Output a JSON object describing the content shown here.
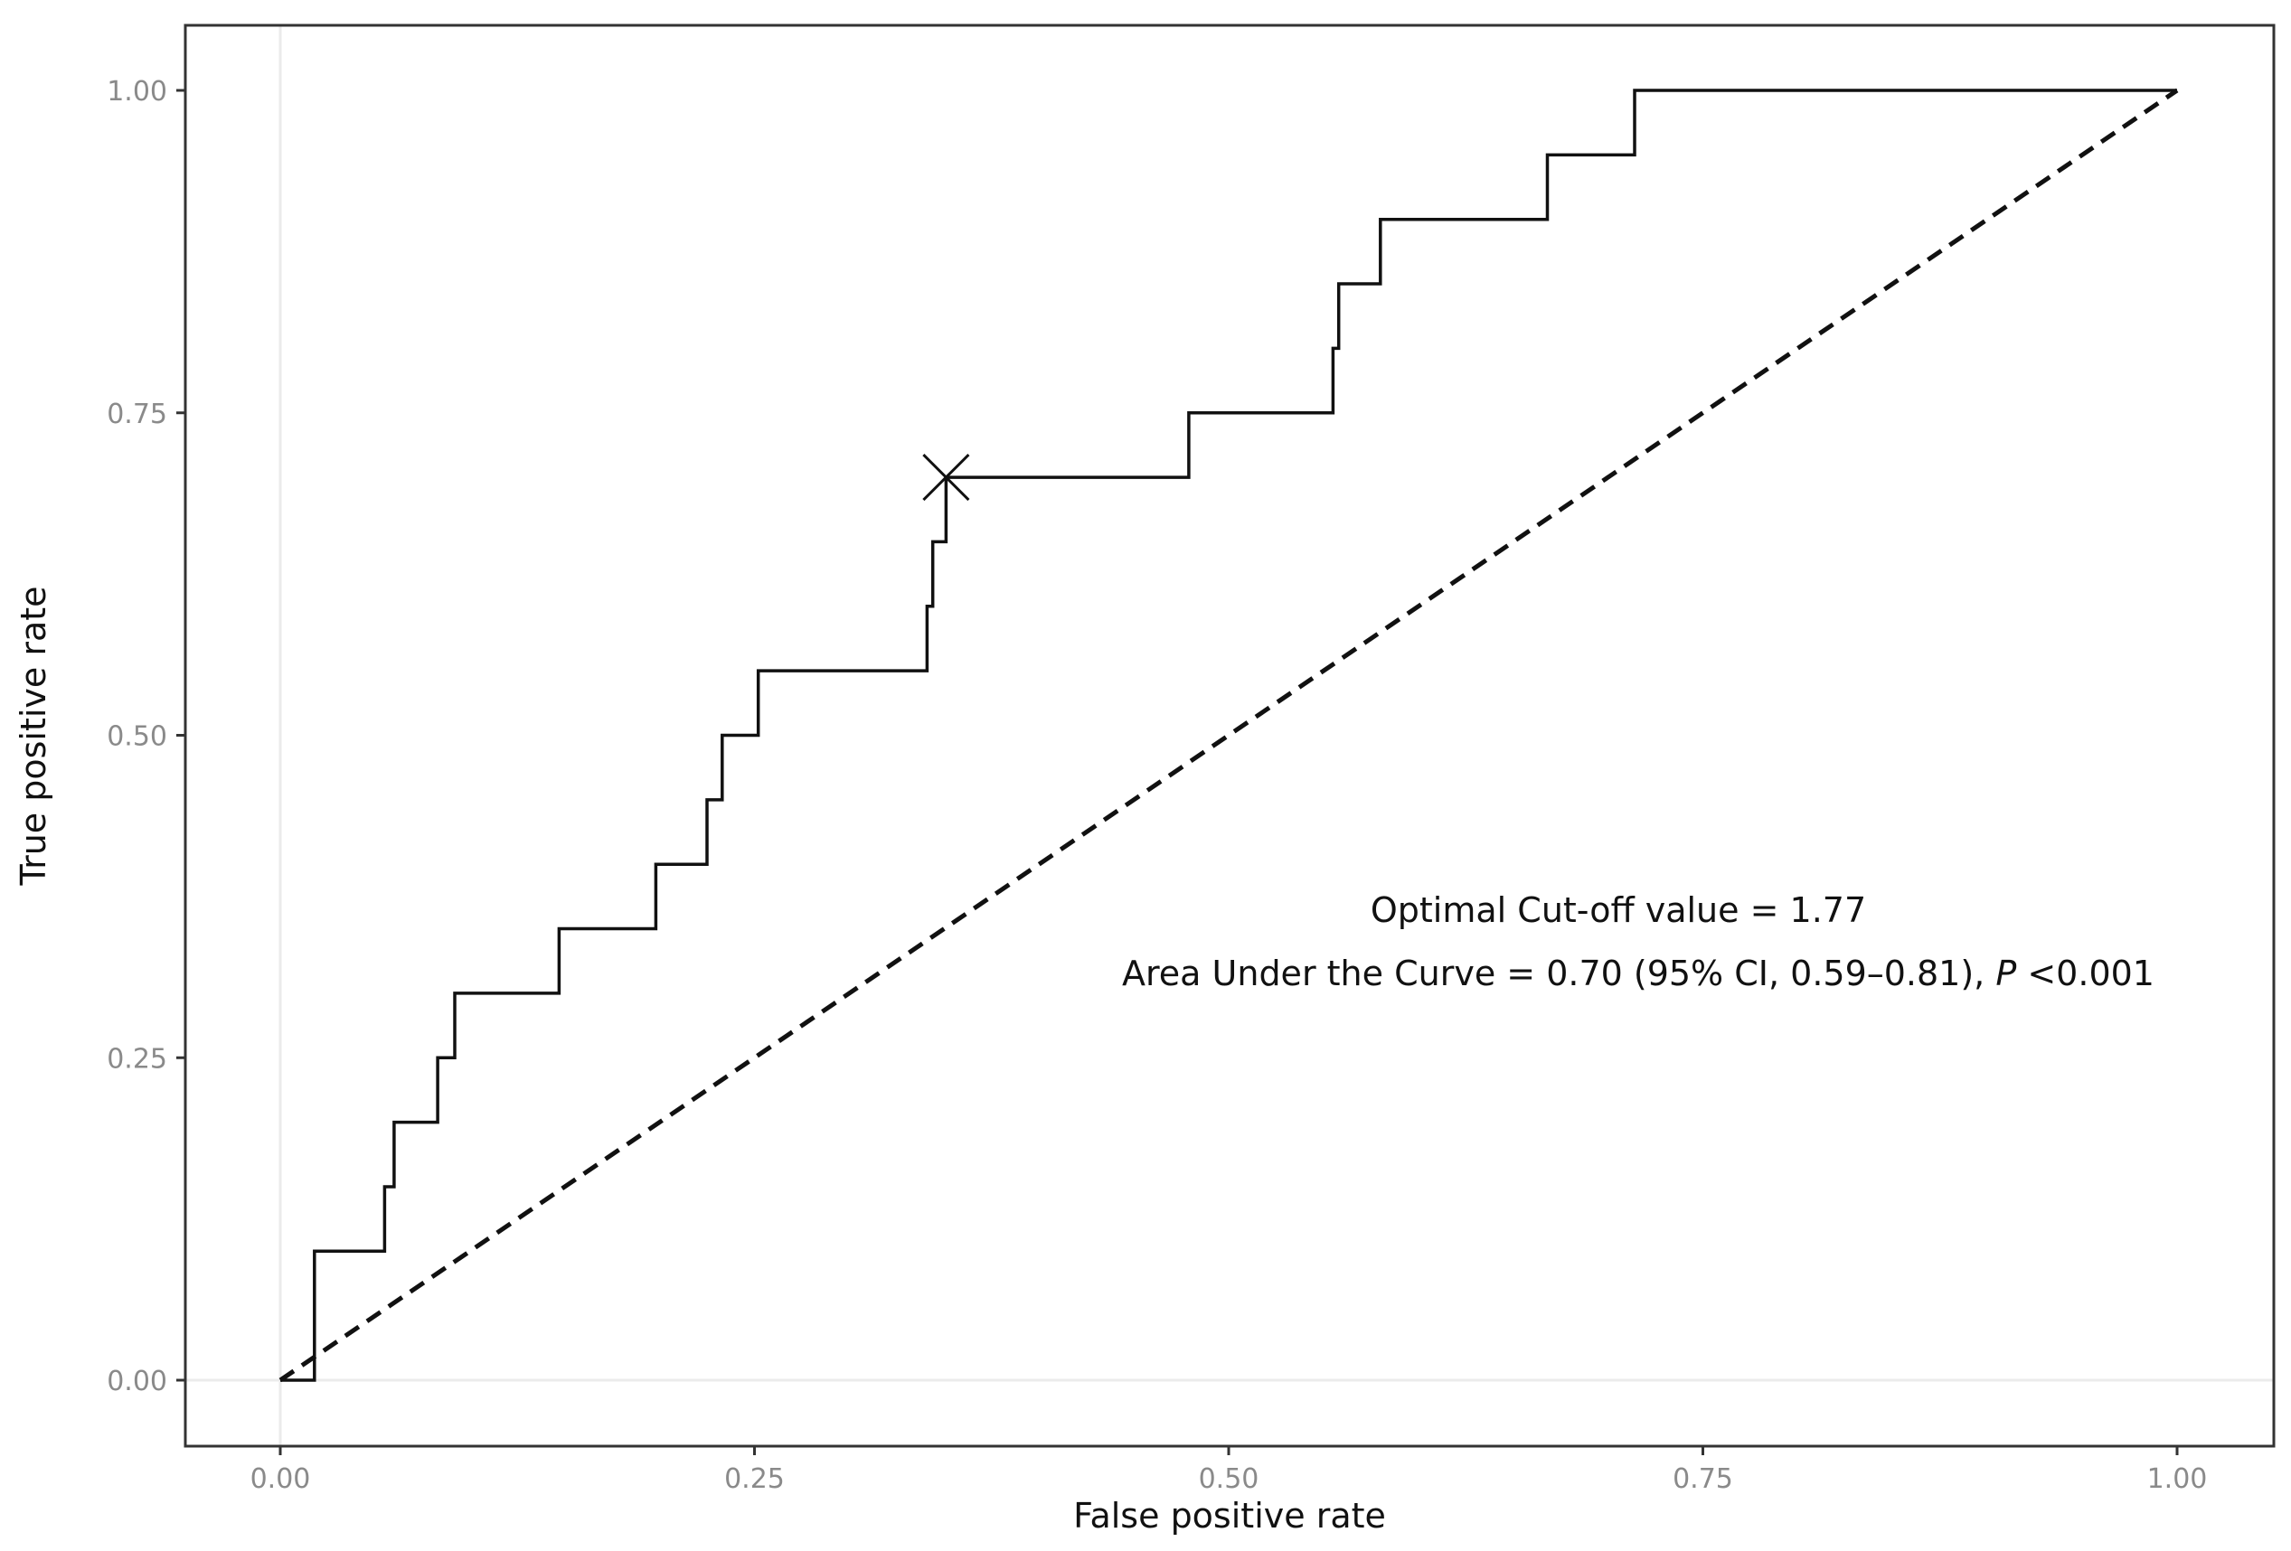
{
  "chart_data": {
    "type": "line",
    "title": "",
    "xlabel": "False positive rate",
    "ylabel": "True positive rate",
    "xlim": [
      0,
      1
    ],
    "ylim": [
      0,
      1
    ],
    "x_ticks": [
      "0.00",
      "0.25",
      "0.50",
      "0.75",
      "1.00"
    ],
    "y_ticks": [
      "0.00",
      "0.25",
      "0.50",
      "0.75",
      "1.00"
    ],
    "grid": "zero lines only",
    "legend": "none",
    "series": [
      {
        "style": "solid step",
        "color": "#111111",
        "points": [
          [
            0.0,
            0.0
          ],
          [
            0.018,
            0.0
          ],
          [
            0.018,
            0.1
          ],
          [
            0.055,
            0.1
          ],
          [
            0.055,
            0.15
          ],
          [
            0.06,
            0.15
          ],
          [
            0.06,
            0.2
          ],
          [
            0.083,
            0.2
          ],
          [
            0.083,
            0.25
          ],
          [
            0.092,
            0.25
          ],
          [
            0.092,
            0.3
          ],
          [
            0.147,
            0.3
          ],
          [
            0.147,
            0.35
          ],
          [
            0.198,
            0.35
          ],
          [
            0.198,
            0.4
          ],
          [
            0.225,
            0.4
          ],
          [
            0.225,
            0.45
          ],
          [
            0.233,
            0.45
          ],
          [
            0.233,
            0.5
          ],
          [
            0.252,
            0.5
          ],
          [
            0.252,
            0.55
          ],
          [
            0.341,
            0.55
          ],
          [
            0.341,
            0.6
          ],
          [
            0.344,
            0.6
          ],
          [
            0.344,
            0.65
          ],
          [
            0.351,
            0.65
          ],
          [
            0.351,
            0.7
          ],
          [
            0.479,
            0.7
          ],
          [
            0.479,
            0.75
          ],
          [
            0.555,
            0.75
          ],
          [
            0.555,
            0.8
          ],
          [
            0.558,
            0.8
          ],
          [
            0.558,
            0.85
          ],
          [
            0.58,
            0.85
          ],
          [
            0.58,
            0.9
          ],
          [
            0.668,
            0.9
          ],
          [
            0.668,
            0.95
          ],
          [
            0.714,
            0.95
          ],
          [
            0.714,
            1.0
          ],
          [
            1.0,
            1.0
          ]
        ]
      },
      {
        "style": "dashed reference",
        "color": "#111111",
        "points": [
          [
            0,
            0
          ],
          [
            1,
            1
          ]
        ]
      }
    ],
    "marker": {
      "shape": "x",
      "x": 0.351,
      "y": 0.7
    },
    "annotations": [
      "Optimal Cut-off value = 1.77",
      "Area Under the Curve = 0.70 (95% CI, 0.59–0.81), ",
      "P",
      " <0.001"
    ]
  }
}
